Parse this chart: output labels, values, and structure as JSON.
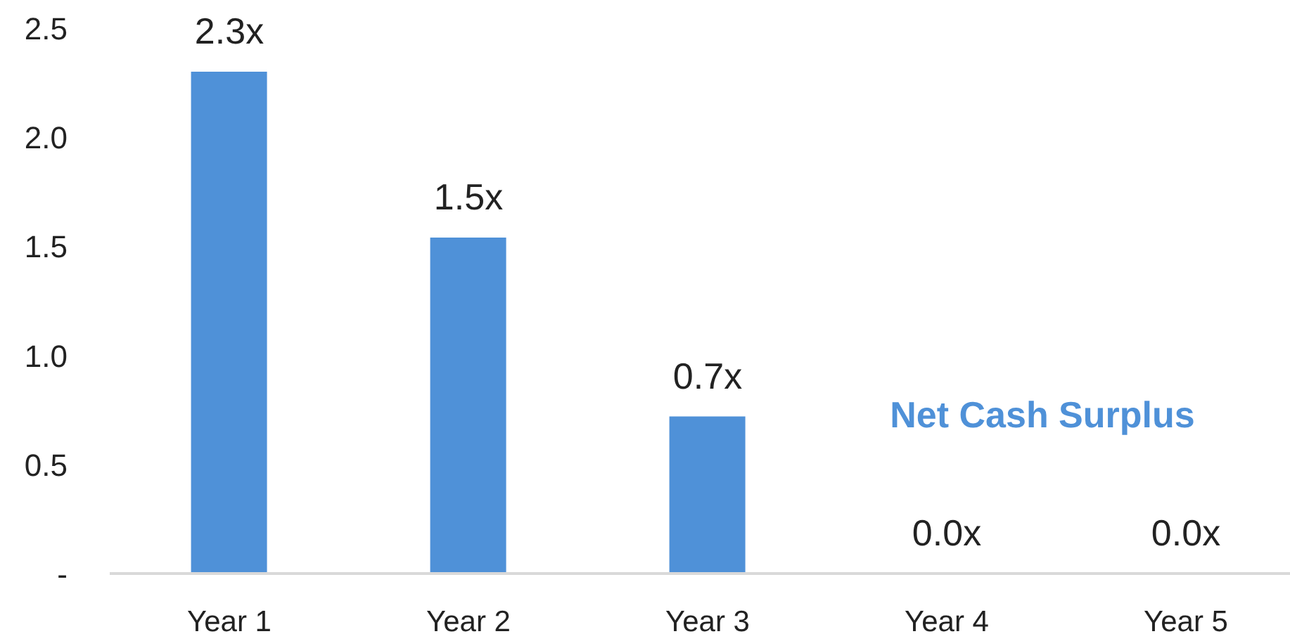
{
  "chart_data": {
    "type": "bar",
    "categories": [
      "Year 1",
      "Year 2",
      "Year 3",
      "Year 4",
      "Year 5"
    ],
    "values": [
      2.3,
      1.54,
      0.72,
      0,
      0
    ],
    "color": "#4f91d8",
    "value_labels": [
      "2.3x",
      "1.5x",
      "0.7x",
      "0.0x",
      "0.0x"
    ],
    "ylim": [
      0,
      2.5
    ],
    "yticks": [
      {
        "value": 0,
        "label": "-"
      },
      0.5,
      {
        "value": 1,
        "label": "1.0"
      },
      1.5,
      {
        "value": 2,
        "label": "2.0"
      },
      2.5
    ],
    "annotations": [
      "Net Cash Surplus"
    ]
  }
}
